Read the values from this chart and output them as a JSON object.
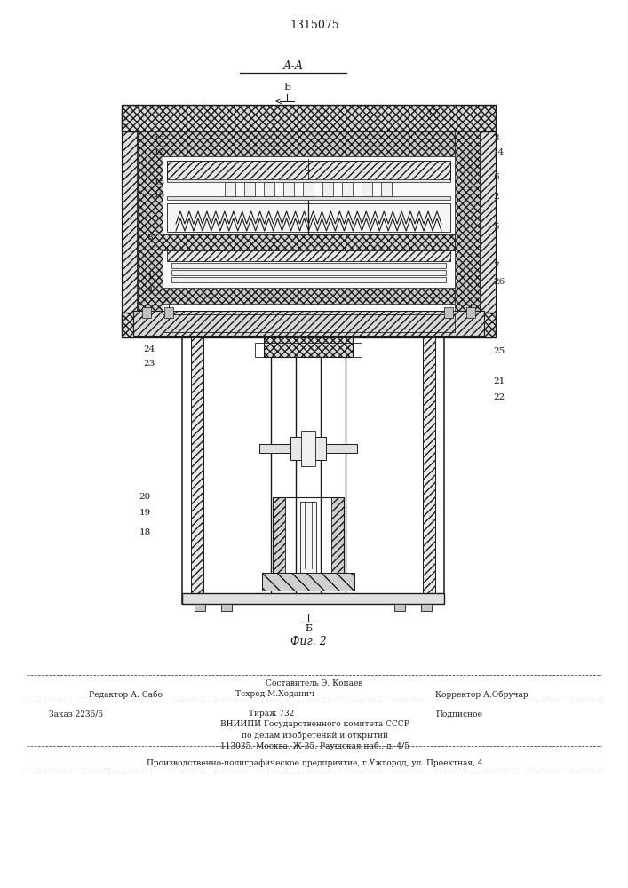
{
  "patent_number": "1315075",
  "fig_label": "Фиг. 2",
  "section_label": "А-А",
  "background": "#ffffff",
  "line_color": "#1a1a1a",
  "text_color": "#1a1a1a"
}
